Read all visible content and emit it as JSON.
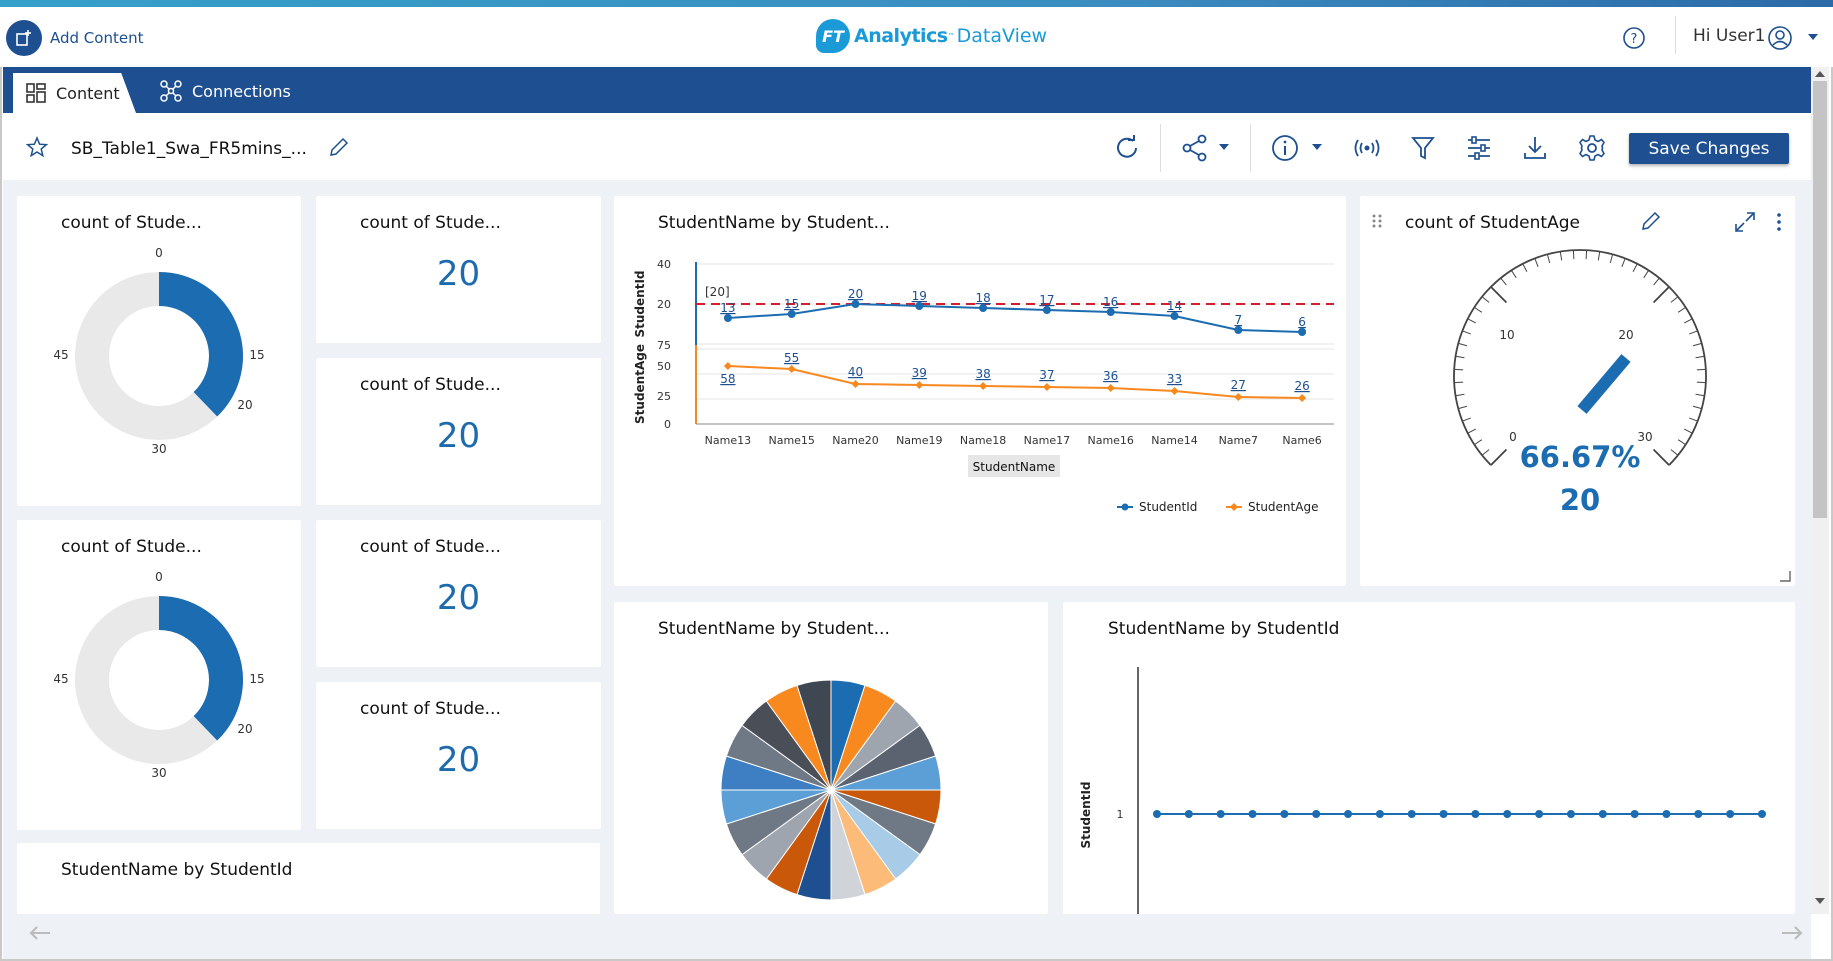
{
  "header": {
    "add_content_label": "Add Content",
    "logo_mark": "FT",
    "logo_analytics": "Analytics",
    "logo_tm": "™",
    "logo_dataview": "DataView",
    "user_greeting": "Hi User1"
  },
  "tabs": [
    {
      "label": "Content",
      "active": true
    },
    {
      "label": "Connections",
      "active": false
    }
  ],
  "toolbar": {
    "dashboard_title": "SB_Table1_Swa_FR5mins_...",
    "save_label": "Save Changes"
  },
  "colors": {
    "primary": "#1d4f91",
    "accent_blue": "#1d6aad",
    "series_blue": "#1b6cb0",
    "series_orange": "#f7891f",
    "reference_red": "#d0202e"
  },
  "widgets": {
    "donut1": {
      "title": "count of Stude...",
      "ticks": [
        "0",
        "15",
        "20",
        "30",
        "45"
      ]
    },
    "donut2": {
      "title": "count of Stude...",
      "ticks": [
        "0",
        "15",
        "20",
        "30",
        "45"
      ]
    },
    "kpi1": {
      "title": "count of Stude...",
      "value": "20"
    },
    "kpi2": {
      "title": "count of Stude...",
      "value": "20"
    },
    "kpi3": {
      "title": "count of Stude...",
      "value": "20"
    },
    "kpi4": {
      "title": "count of Stude...",
      "value": "20"
    },
    "line_chart": {
      "title": "StudentName by Student..."
    },
    "gauge": {
      "title": "count of StudentAge",
      "percent": "66.67%",
      "value": "20",
      "ticks": [
        "0",
        "10",
        "20",
        "30"
      ]
    },
    "pie": {
      "title": "StudentName by Student..."
    },
    "dot_chart": {
      "title": "StudentName by StudentId"
    },
    "bottom_card": {
      "title": "StudentName by StudentId"
    }
  },
  "chart_data": [
    {
      "type": "line",
      "title": "StudentName by Student...",
      "xlabel": "StudentName",
      "categories": [
        "Name13",
        "Name15",
        "Name20",
        "Name19",
        "Name18",
        "Name17",
        "Name16",
        "Name14",
        "Name7",
        "Name6"
      ],
      "series": [
        {
          "name": "StudentId",
          "values": [
            13,
            15,
            20,
            19,
            18,
            17,
            16,
            14,
            7,
            6
          ]
        },
        {
          "name": "StudentAge",
          "values": [
            58,
            55,
            40,
            39,
            38,
            37,
            36,
            33,
            27,
            26
          ]
        }
      ],
      "panels": [
        {
          "ylabel": "StudentId",
          "ylim": [
            0,
            40
          ],
          "ticks": [
            "40",
            "20"
          ]
        },
        {
          "ylabel": "StudentAge",
          "ylim": [
            0,
            75
          ],
          "ticks": [
            "75",
            "50",
            "25",
            "0"
          ]
        }
      ],
      "reference_line": {
        "value": 20,
        "label": "[20]"
      },
      "legend": "bottom-right"
    },
    {
      "type": "pie",
      "title": "StudentName by Student...",
      "slices": 20
    },
    {
      "type": "scatter",
      "title": "StudentName by StudentId",
      "ylabel": "StudentId",
      "ytick": "1",
      "points": 20,
      "values": [
        1,
        1,
        1,
        1,
        1,
        1,
        1,
        1,
        1,
        1,
        1,
        1,
        1,
        1,
        1,
        1,
        1,
        1,
        1,
        1
      ]
    }
  ]
}
